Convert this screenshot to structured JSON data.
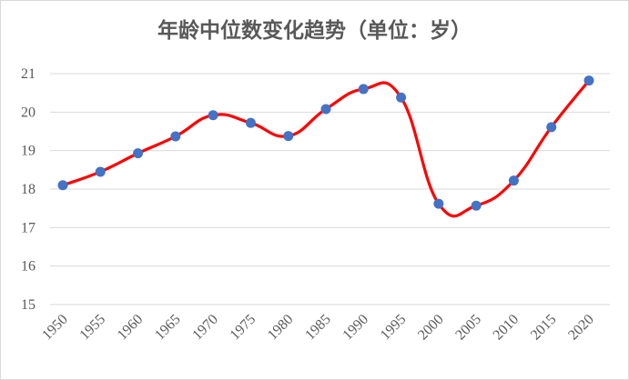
{
  "chart_data": {
    "type": "line",
    "title": "年龄中位数变化趋势（单位：岁）",
    "xlabel": "",
    "ylabel": "",
    "x": [
      "1950",
      "1955",
      "1960",
      "1965",
      "1970",
      "1975",
      "1980",
      "1985",
      "1990",
      "1995",
      "2000",
      "2005",
      "2010",
      "2015",
      "2020"
    ],
    "series": [
      {
        "values": [
          18.1,
          18.45,
          18.93,
          19.37,
          19.92,
          19.72,
          19.38,
          20.08,
          20.6,
          20.38,
          17.62,
          17.57,
          18.22,
          19.61,
          20.82
        ]
      }
    ],
    "ylim": [
      15,
      21
    ],
    "yticks": [
      "15",
      "16",
      "17",
      "18",
      "19",
      "20",
      "21"
    ],
    "grid": true,
    "smooth": true,
    "line_color": "#ff0000",
    "marker_color": "#4472c4",
    "gridline_color": "#d9d9d9"
  }
}
